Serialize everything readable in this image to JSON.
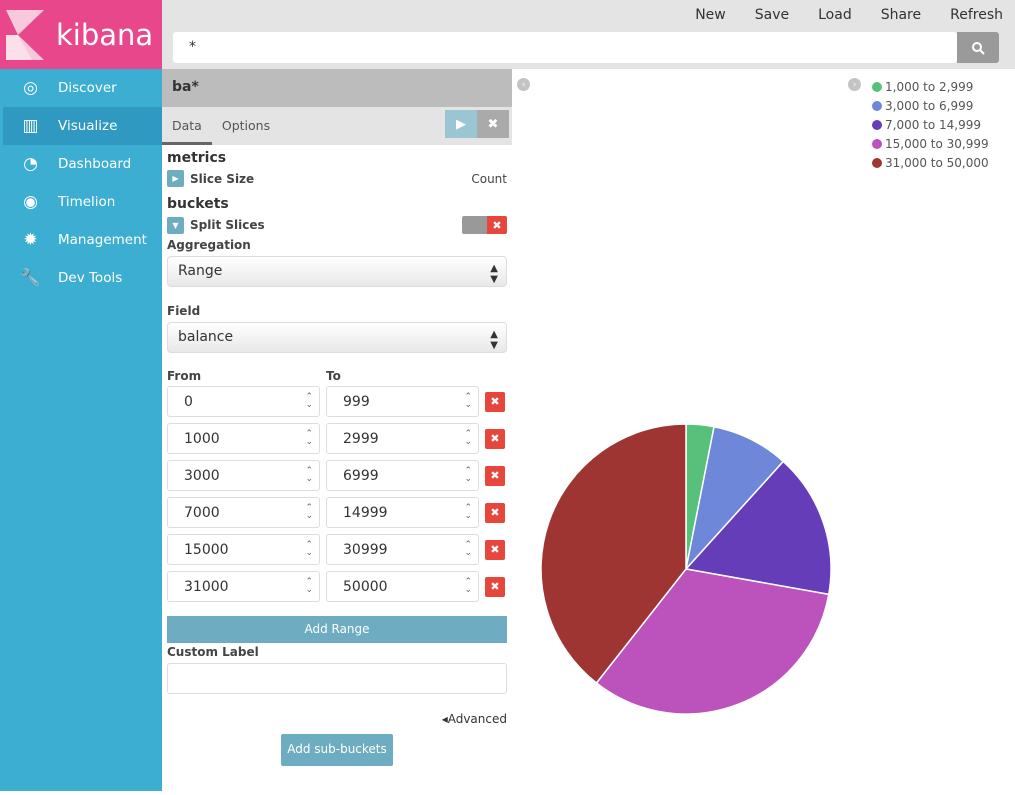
{
  "app": {
    "logo_text": "kibana"
  },
  "sidebar": {
    "items": [
      {
        "label": "Discover",
        "icon": "compass-icon"
      },
      {
        "label": "Visualize",
        "icon": "bar-chart-icon",
        "active": true
      },
      {
        "label": "Dashboard",
        "icon": "dashboard-icon"
      },
      {
        "label": "Timelion",
        "icon": "timelion-icon"
      },
      {
        "label": "Management",
        "icon": "gear-icon"
      },
      {
        "label": "Dev Tools",
        "icon": "wrench-icon"
      }
    ]
  },
  "topmenu": [
    "New",
    "Save",
    "Load",
    "Share",
    "Refresh"
  ],
  "search": {
    "value": "*"
  },
  "panel": {
    "index": "ba*",
    "tabs": [
      "Data",
      "Options"
    ],
    "metrics_title": "metrics",
    "slice_size": "Slice Size",
    "slice_value": "Count",
    "buckets_title": "buckets",
    "split": "Split Slices",
    "aggregation_label": "Aggregation",
    "aggregation": "Range",
    "field_label": "Field",
    "field": "balance",
    "from_label": "From",
    "to_label": "To",
    "ranges": [
      {
        "from": "0",
        "to": "999"
      },
      {
        "from": "1000",
        "to": "2999"
      },
      {
        "from": "3000",
        "to": "6999"
      },
      {
        "from": "7000",
        "to": "14999"
      },
      {
        "from": "15000",
        "to": "30999"
      },
      {
        "from": "31000",
        "to": "50000"
      }
    ],
    "add_range": "Add Range",
    "custom_label": "Custom Label",
    "custom_value": "",
    "advanced": "Advanced",
    "add_sub": "Add sub-buckets"
  },
  "chart_data": {
    "type": "pie",
    "categories": [
      "1,000 to 2,999",
      "3,000 to 6,999",
      "7,000 to 14,999",
      "15,000 to 30,999",
      "31,000 to 50,000"
    ],
    "values": [
      3.1,
      8.6,
      16.1,
      32.8,
      39.4
    ],
    "unit": "approx. percent of Count",
    "colors": [
      "#57c17b",
      "#6f87d8",
      "#663db8",
      "#bc52bc",
      "#9e3533"
    ],
    "legend": "top-right"
  }
}
